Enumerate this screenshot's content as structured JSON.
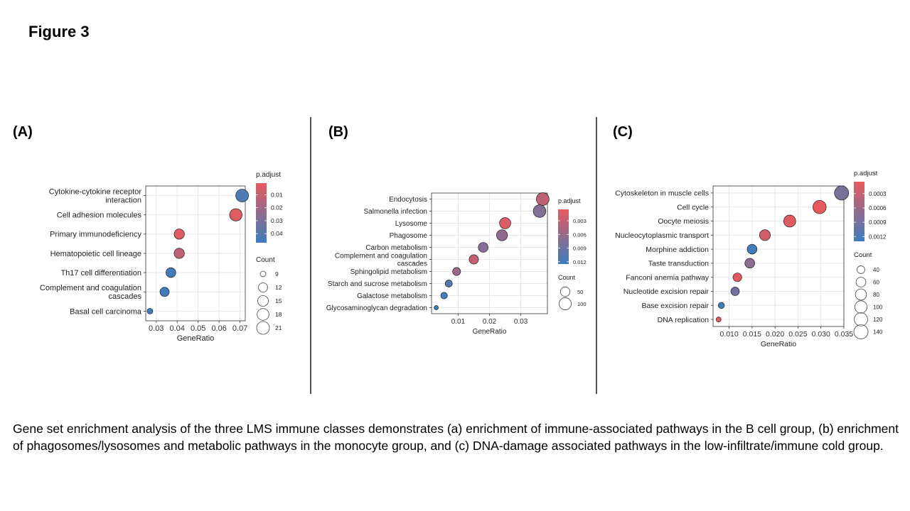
{
  "figure_title": "Figure 3",
  "panels": [
    {
      "label": "(A)"
    },
    {
      "label": "(B)"
    },
    {
      "label": "(C)"
    }
  ],
  "caption": "Gene set enrichment analysis of the three LMS immune classes demonstrates (a) enrichment of immune-associated pathways in the B cell group, (b) enrichment of phagosomes/lysosomes and metabolic pathways in the monocyte group, and (c) DNA-damage associated pathways in the low-infiltrate/immune cold group.",
  "colors": {
    "low_padj": "#e8595d",
    "high_padj": "#3b7dbd"
  },
  "chart_data": [
    {
      "type": "scatter",
      "xlabel": "GeneRatio",
      "xlim": [
        0.025,
        0.0725
      ],
      "xticks": [
        0.03,
        0.04,
        0.05,
        0.06,
        0.07
      ],
      "xtick_labels": [
        "0.03",
        "0.04",
        "0.05",
        "0.06",
        "0.07"
      ],
      "categories": [
        "Cytokine-cytokine receptor\ninteraction",
        "Cell adhesion molecules",
        "Primary immunodeficiency",
        "Hematopoietic cell lineage",
        "Th17 cell differentiation",
        "Complement and coagulation\ncascades",
        "Basal cell carcinoma"
      ],
      "gene_ratio": [
        0.071,
        0.068,
        0.041,
        0.041,
        0.037,
        0.034,
        0.027
      ],
      "count": [
        21,
        20,
        14,
        14,
        13,
        12,
        9
      ],
      "p_adjust": [
        0.042,
        0.004,
        0.004,
        0.012,
        0.045,
        0.045,
        0.047
      ],
      "color_legend": {
        "title": "p.adjust",
        "min": 0.001,
        "max": 0.047,
        "ticks": [
          "0.01",
          "0.02",
          "0.03",
          "0.04"
        ],
        "tick_values": [
          0.01,
          0.02,
          0.03,
          0.04
        ]
      },
      "size_legend": {
        "title": "Count",
        "labels": [
          "9",
          "12",
          "15",
          "18",
          "21"
        ],
        "values": [
          9,
          12,
          15,
          18,
          21
        ]
      }
    },
    {
      "type": "scatter",
      "xlabel": "GeneRatio",
      "xlim": [
        0.0015,
        0.0385
      ],
      "xticks": [
        0.01,
        0.02,
        0.03
      ],
      "xtick_labels": [
        "0.01",
        "0.02",
        "0.03"
      ],
      "categories": [
        "Endocytosis",
        "Salmonella infection",
        "Lysosome",
        "Phagosome",
        "Carbon metabolism",
        "Complement and coagulation\ncascades",
        "Sphingolipid metabolism",
        "Starch and sucrose metabolism",
        "Galactose metabolism",
        "Glycosaminoglycan degradation"
      ],
      "gene_ratio": [
        0.037,
        0.036,
        0.025,
        0.024,
        0.018,
        0.015,
        0.0095,
        0.007,
        0.0055,
        0.003
      ],
      "count": [
        115,
        110,
        80,
        75,
        55,
        48,
        30,
        22,
        18,
        10
      ],
      "p_adjust": [
        0.0035,
        0.0075,
        0.0015,
        0.0065,
        0.0072,
        0.003,
        0.006,
        0.0105,
        0.012,
        0.0125
      ],
      "color_legend": {
        "title": "p.adjust",
        "min": 0.0005,
        "max": 0.0125,
        "ticks": [
          "0.003",
          "0.006",
          "0.009",
          "0.012"
        ],
        "tick_values": [
          0.003,
          0.006,
          0.009,
          0.012
        ]
      },
      "size_legend": {
        "title": "Count",
        "labels": [
          "50",
          "100"
        ],
        "values": [
          50,
          100
        ]
      }
    },
    {
      "type": "scatter",
      "xlabel": "GeneRatio",
      "xlim": [
        0.0065,
        0.035
      ],
      "xticks": [
        0.01,
        0.015,
        0.02,
        0.025,
        0.03,
        0.035
      ],
      "xtick_labels": [
        "0.010",
        "0.015",
        "0.020",
        "0.025",
        "0.030",
        "0.035"
      ],
      "categories": [
        "Cytoskeleton in muscle cells",
        "Cell cycle",
        "Oocyte meiosis",
        "Nucleocytoplasmic transport",
        "Morphine addiction",
        "Taste transduction",
        "Fanconi anemia pathway",
        "Nucleotide excision repair",
        "Base excision repair",
        "DNA replication"
      ],
      "gene_ratio": [
        0.0345,
        0.0297,
        0.0232,
        0.0178,
        0.015,
        0.0145,
        0.0118,
        0.0113,
        0.0083,
        0.0077
      ],
      "count": [
        140,
        120,
        95,
        75,
        60,
        60,
        48,
        46,
        32,
        30
      ],
      "p_adjust": [
        0.00085,
        5e-05,
        0.0001,
        0.0002,
        0.00125,
        0.0007,
        0.0001,
        0.0009,
        0.00125,
        0.0001
      ],
      "color_legend": {
        "title": "p.adjust",
        "min": 5e-05,
        "max": 0.0013,
        "ticks": [
          "0.0003",
          "0.0006",
          "0.0009",
          "0.0012"
        ],
        "tick_values": [
          0.0003,
          0.0006,
          0.0009,
          0.0012
        ]
      },
      "size_legend": {
        "title": "Count",
        "labels": [
          "40",
          "60",
          "80",
          "100",
          "120",
          "140"
        ],
        "values": [
          40,
          60,
          80,
          100,
          120,
          140
        ]
      }
    }
  ]
}
